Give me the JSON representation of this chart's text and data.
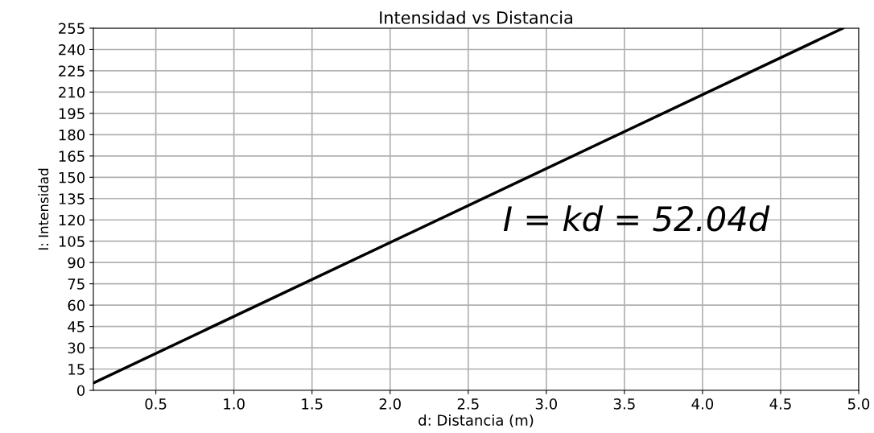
{
  "chart_data": {
    "type": "line",
    "title": "Intensidad vs Distancia",
    "xlabel": "d: Distancia (m)",
    "ylabel": "I: Intensidad",
    "annotations": [
      "I = kd = 52.04d"
    ],
    "series": [
      {
        "color": "#000000",
        "x": [
          0.1,
          4.9
        ],
        "values": [
          5.2,
          255
        ]
      }
    ],
    "xlim": [
      0.1,
      5.0
    ],
    "xticks": [
      {
        "value": 0.5,
        "label": "0.5"
      },
      {
        "value": 1.0,
        "label": "1.0"
      },
      {
        "value": 1.5,
        "label": "1.5"
      },
      {
        "value": 2.0,
        "label": "2.0"
      },
      {
        "value": 2.5,
        "label": "2.5"
      },
      {
        "value": 3.0,
        "label": "3.0"
      },
      {
        "value": 3.5,
        "label": "3.5"
      },
      {
        "value": 4.0,
        "label": "4.0"
      },
      {
        "value": 4.5,
        "label": "4.5"
      },
      {
        "value": 5.0,
        "label": "5.0"
      }
    ],
    "ylim": [
      0,
      255
    ],
    "yticks": [
      0,
      15,
      30,
      45,
      60,
      75,
      90,
      105,
      120,
      135,
      150,
      165,
      180,
      195,
      210,
      225,
      240,
      255
    ],
    "grid": true,
    "line_style": "solid"
  }
}
